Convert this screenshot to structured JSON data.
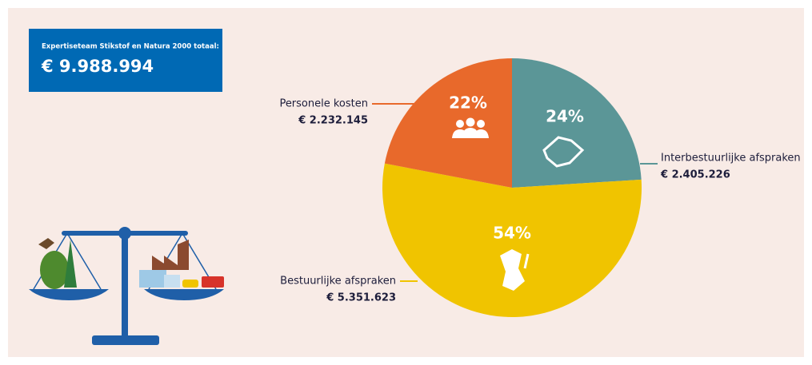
{
  "header": {
    "title": "Expertiseteam Stikstof en Natura 2000 totaal:",
    "total": {
      "value": 9988994,
      "label": "€ 9.988.994"
    }
  },
  "chart_data": {
    "type": "pie",
    "categories": [
      "Interbestuurlijke afspraken",
      "Bestuurlijke afspraken",
      "Personele kosten"
    ],
    "values": [
      24,
      54,
      22
    ],
    "value_labels": [
      "24%",
      "54%",
      "22%"
    ],
    "amounts": [
      {
        "value": 2405226,
        "label": "€ 2.405.226"
      },
      {
        "value": 5351623,
        "label": "€ 5.351.623"
      },
      {
        "value": 2232145,
        "label": "€ 2.232.145"
      }
    ],
    "colors": [
      "#5b9697",
      "#f0c400",
      "#e8692b"
    ]
  }
}
